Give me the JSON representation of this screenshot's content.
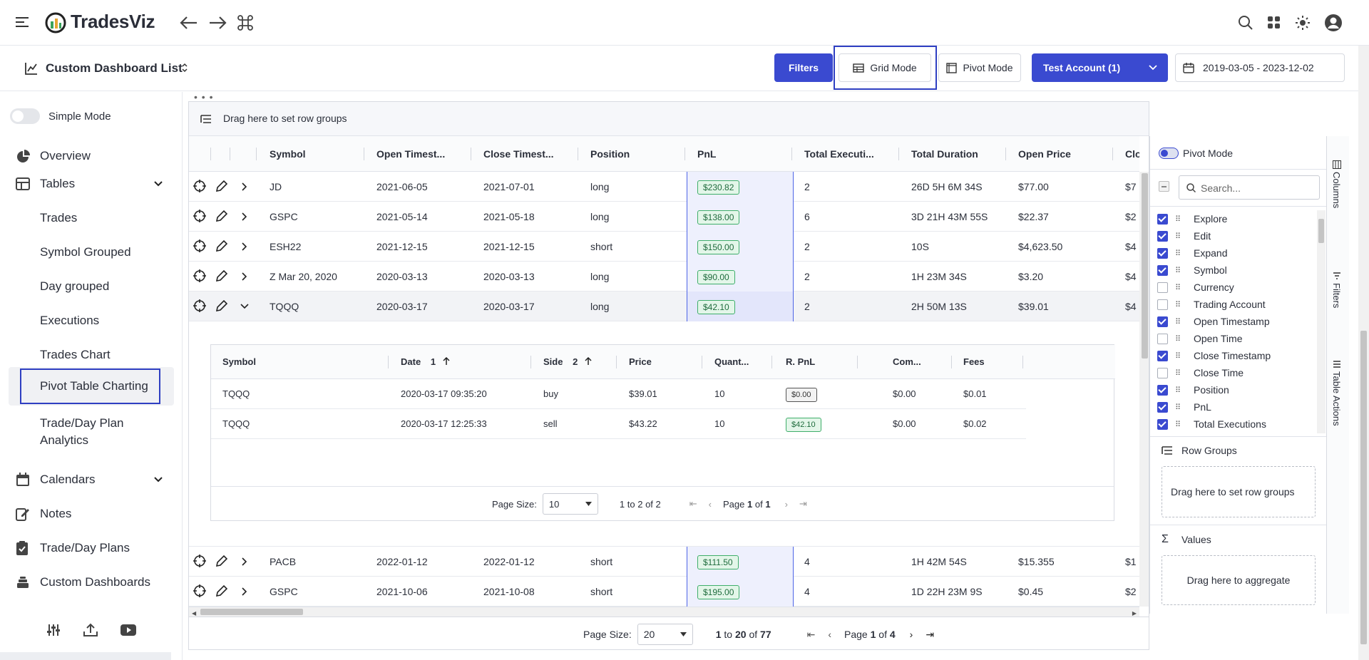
{
  "app": {
    "name": "TradesViz"
  },
  "dashboard": {
    "title": "Custom Dashboard List",
    "filters_label": "Filters",
    "grid_mode_label": "Grid Mode",
    "pivot_mode_label": "Pivot Mode",
    "account_label": "Test Account (1)",
    "date_range": "2019-03-05 - 2023-12-02"
  },
  "sidebar": {
    "simple_mode_label": "Simple Mode",
    "items": [
      {
        "label": "Overview"
      },
      {
        "label": "Tables"
      },
      {
        "label": "Calendars"
      },
      {
        "label": "Notes"
      },
      {
        "label": "Trade/Day Plans"
      },
      {
        "label": "Custom Dashboards"
      }
    ],
    "table_subitems": [
      {
        "label": "Trades"
      },
      {
        "label": "Symbol Grouped"
      },
      {
        "label": "Day grouped"
      },
      {
        "label": "Executions"
      },
      {
        "label": "Trades Chart"
      },
      {
        "label": "Pivot Table Charting"
      },
      {
        "label": "Trade/Day Plan"
      },
      {
        "label": "Analytics"
      }
    ]
  },
  "grid": {
    "row_group_hint": "Drag here to set row groups",
    "columns": [
      "Symbol",
      "Open Timest...",
      "Close Timest...",
      "Position",
      "PnL",
      "Total Executi...",
      "Total Duration",
      "Open Price",
      "Close"
    ],
    "rows": [
      {
        "symbol": "JD",
        "open": "2021-06-05",
        "close": "2021-07-01",
        "position": "long",
        "pnl": "$230.82",
        "execs": "2",
        "duration": "26D 5H 6M 34S",
        "open_price": "$77.00",
        "close_price": "$7"
      },
      {
        "symbol": "GSPC",
        "open": "2021-05-14",
        "close": "2021-05-18",
        "position": "long",
        "pnl": "$138.00",
        "execs": "6",
        "duration": "3D 21H 43M 55S",
        "open_price": "$22.37",
        "close_price": "$2"
      },
      {
        "symbol": "ESH22",
        "open": "2021-12-15",
        "close": "2021-12-15",
        "position": "short",
        "pnl": "$150.00",
        "execs": "2",
        "duration": "10S",
        "open_price": "$4,623.50",
        "close_price": "$4"
      },
      {
        "symbol": "Z Mar 20, 2020",
        "open": "2020-03-13",
        "close": "2020-03-13",
        "position": "long",
        "pnl": "$90.00",
        "execs": "2",
        "duration": "1H 23M 34S",
        "open_price": "$3.20",
        "close_price": "$4"
      },
      {
        "symbol": "TQQQ",
        "open": "2020-03-17",
        "close": "2020-03-17",
        "position": "long",
        "pnl": "$42.10",
        "execs": "2",
        "duration": "2H 50M 13S",
        "open_price": "$39.01",
        "close_price": "$4"
      },
      {
        "symbol": "PACB",
        "open": "2022-01-12",
        "close": "2022-01-12",
        "position": "short",
        "pnl": "$111.50",
        "execs": "4",
        "duration": "1H 42M 54S",
        "open_price": "$15.355",
        "close_price": "$1"
      },
      {
        "symbol": "GSPC",
        "open": "2021-10-06",
        "close": "2021-10-08",
        "position": "short",
        "pnl": "$195.00",
        "execs": "4",
        "duration": "1D 22H 23M 9S",
        "open_price": "$0.45",
        "close_price": "$2"
      }
    ],
    "detail": {
      "columns": [
        "Symbol",
        "Date",
        "Side",
        "Price",
        "Quant...",
        "R. PnL",
        "Com...",
        "Fees"
      ],
      "date_sort": "1",
      "side_sort": "2",
      "rows": [
        {
          "symbol": "TQQQ",
          "date": "2020-03-17 09:35:20",
          "side": "buy",
          "price": "$39.01",
          "qty": "10",
          "rpnl": "$0.00",
          "com": "$0.00",
          "fees": "$0.01"
        },
        {
          "symbol": "TQQQ",
          "date": "2020-03-17 12:25:33",
          "side": "sell",
          "price": "$43.22",
          "qty": "10",
          "rpnl": "$42.10",
          "com": "$0.00",
          "fees": "$0.02"
        }
      ],
      "pager": {
        "page_size_label": "Page Size:",
        "page_size": "10",
        "from": "1",
        "to_word": "to",
        "to": "2",
        "of_word": "of",
        "total": "2",
        "page_word": "Page",
        "page": "1",
        "pages": "1"
      }
    },
    "pager": {
      "page_size_label": "Page Size:",
      "page_size": "20",
      "from": "1",
      "to_word": "to",
      "to": "20",
      "of_word": "of",
      "total": "77",
      "page_word": "Page",
      "page": "1",
      "pages": "4"
    }
  },
  "toolpanel": {
    "pivot_mode_label": "Pivot Mode",
    "search_placeholder": "Search...",
    "columns": [
      {
        "label": "Explore",
        "checked": true
      },
      {
        "label": "Edit",
        "checked": true
      },
      {
        "label": "Expand",
        "checked": true
      },
      {
        "label": "Symbol",
        "checked": true
      },
      {
        "label": "Currency",
        "checked": false
      },
      {
        "label": "Trading Account",
        "checked": false
      },
      {
        "label": "Open Timestamp",
        "checked": true
      },
      {
        "label": "Open Time",
        "checked": false
      },
      {
        "label": "Close Timestamp",
        "checked": true
      },
      {
        "label": "Close Time",
        "checked": false
      },
      {
        "label": "Position",
        "checked": true
      },
      {
        "label": "PnL",
        "checked": true
      },
      {
        "label": "Total Executions",
        "checked": true
      }
    ],
    "row_groups_title": "Row Groups",
    "row_groups_hint": "Drag here to set row groups",
    "values_title": "Values",
    "values_hint": "Drag here to aggregate"
  },
  "sidetabs": [
    "Columns",
    "Filters",
    "Table Actions"
  ],
  "colors": {
    "primary": "#3a4ad0",
    "highlight": "#2f3fc2",
    "pnl_bg": "#e3f6e9",
    "pnl_border": "#3fae6a"
  }
}
